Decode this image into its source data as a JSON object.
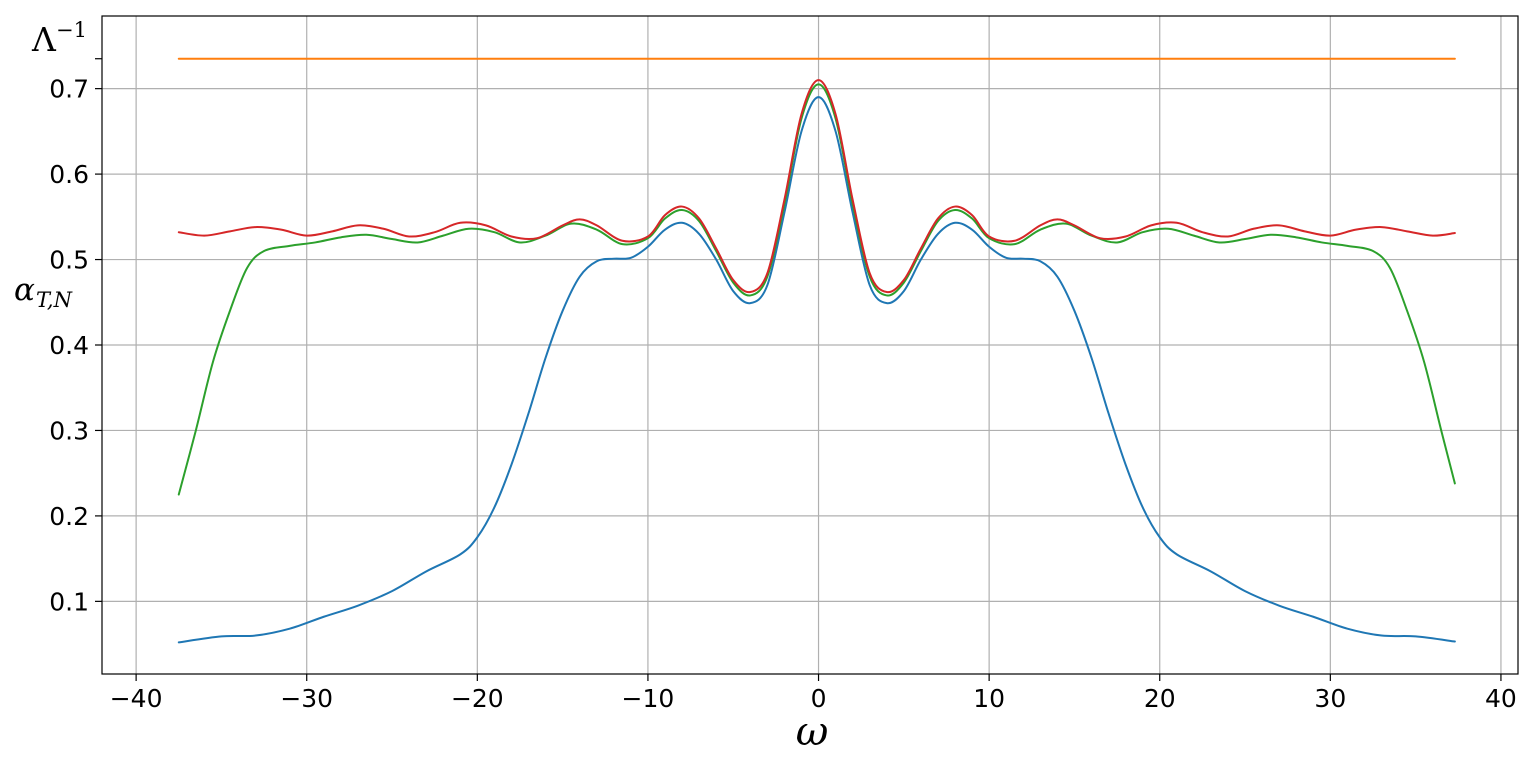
{
  "chart_data": {
    "type": "line",
    "title": "",
    "xlabel": "ω",
    "ylabel": "α_{T,N}",
    "xlim": [
      -42,
      41
    ],
    "ylim": [
      0.015,
      0.785
    ],
    "grid": true,
    "legend": "none",
    "x_ticks": [
      -40,
      -30,
      -20,
      -10,
      0,
      10,
      20,
      30,
      40
    ],
    "x_tick_labels": [
      "−40",
      "−30",
      "−20",
      "−10",
      "0",
      "10",
      "20",
      "30",
      "40"
    ],
    "y_ticks": [
      0.1,
      0.2,
      0.3,
      0.4,
      0.5,
      0.6,
      0.7
    ],
    "y_tick_labels": [
      "0.1",
      "0.2",
      "0.3",
      "0.4",
      "0.5",
      "0.6",
      "0.7"
    ],
    "annotations": [
      {
        "text": "Λ⁻¹",
        "y": 0.735
      }
    ],
    "series": [
      {
        "color": "#1f77b4",
        "points": [
          [
            -37.5,
            0.052
          ],
          [
            -35,
            0.059
          ],
          [
            -33,
            0.06
          ],
          [
            -31,
            0.068
          ],
          [
            -29,
            0.082
          ],
          [
            -27,
            0.095
          ],
          [
            -25,
            0.112
          ],
          [
            -23,
            0.135
          ],
          [
            -21,
            0.155
          ],
          [
            -20,
            0.175
          ],
          [
            -19,
            0.21
          ],
          [
            -18,
            0.26
          ],
          [
            -17,
            0.32
          ],
          [
            -16,
            0.385
          ],
          [
            -15,
            0.44
          ],
          [
            -14,
            0.48
          ],
          [
            -13,
            0.498
          ],
          [
            -12,
            0.501
          ],
          [
            -11,
            0.502
          ],
          [
            -10,
            0.515
          ],
          [
            -9,
            0.535
          ],
          [
            -8,
            0.543
          ],
          [
            -7,
            0.53
          ],
          [
            -6,
            0.5
          ],
          [
            -5,
            0.463
          ],
          [
            -4,
            0.449
          ],
          [
            -3,
            0.47
          ],
          [
            -2,
            0.555
          ],
          [
            -1,
            0.65
          ],
          [
            0,
            0.69
          ],
          [
            1,
            0.65
          ],
          [
            2,
            0.555
          ],
          [
            3,
            0.47
          ],
          [
            4,
            0.449
          ],
          [
            5,
            0.463
          ],
          [
            6,
            0.5
          ],
          [
            7,
            0.53
          ],
          [
            8,
            0.543
          ],
          [
            9,
            0.535
          ],
          [
            10,
            0.515
          ],
          [
            11,
            0.502
          ],
          [
            12,
            0.501
          ],
          [
            13,
            0.498
          ],
          [
            14,
            0.48
          ],
          [
            15,
            0.44
          ],
          [
            16,
            0.385
          ],
          [
            17,
            0.32
          ],
          [
            18,
            0.26
          ],
          [
            19,
            0.21
          ],
          [
            20,
            0.175
          ],
          [
            21,
            0.155
          ],
          [
            23,
            0.135
          ],
          [
            25,
            0.112
          ],
          [
            27,
            0.095
          ],
          [
            29,
            0.082
          ],
          [
            31,
            0.068
          ],
          [
            33,
            0.06
          ],
          [
            35,
            0.059
          ],
          [
            37.3,
            0.053
          ]
        ]
      },
      {
        "color": "#ff7f0e",
        "points": [
          [
            -37.5,
            0.735
          ],
          [
            37.3,
            0.735
          ]
        ]
      },
      {
        "color": "#2ca02c",
        "points": [
          [
            -37.5,
            0.225
          ],
          [
            -36.5,
            0.3
          ],
          [
            -35.5,
            0.38
          ],
          [
            -34.5,
            0.44
          ],
          [
            -33.5,
            0.49
          ],
          [
            -32.5,
            0.51
          ],
          [
            -31,
            0.516
          ],
          [
            -29.5,
            0.52
          ],
          [
            -28,
            0.526
          ],
          [
            -26.5,
            0.529
          ],
          [
            -25,
            0.524
          ],
          [
            -23.5,
            0.52
          ],
          [
            -22,
            0.528
          ],
          [
            -20.5,
            0.536
          ],
          [
            -19,
            0.532
          ],
          [
            -17.5,
            0.52
          ],
          [
            -16,
            0.528
          ],
          [
            -14.5,
            0.542
          ],
          [
            -13,
            0.535
          ],
          [
            -11.5,
            0.518
          ],
          [
            -10,
            0.525
          ],
          [
            -9,
            0.548
          ],
          [
            -8,
            0.558
          ],
          [
            -7,
            0.545
          ],
          [
            -6,
            0.51
          ],
          [
            -5,
            0.473
          ],
          [
            -4,
            0.458
          ],
          [
            -3,
            0.48
          ],
          [
            -2,
            0.565
          ],
          [
            -1,
            0.665
          ],
          [
            0,
            0.705
          ],
          [
            1,
            0.665
          ],
          [
            2,
            0.565
          ],
          [
            3,
            0.48
          ],
          [
            4,
            0.458
          ],
          [
            5,
            0.473
          ],
          [
            6,
            0.51
          ],
          [
            7,
            0.545
          ],
          [
            8,
            0.558
          ],
          [
            9,
            0.548
          ],
          [
            10,
            0.525
          ],
          [
            11.5,
            0.518
          ],
          [
            13,
            0.535
          ],
          [
            14.5,
            0.542
          ],
          [
            16,
            0.528
          ],
          [
            17.5,
            0.52
          ],
          [
            19,
            0.532
          ],
          [
            20.5,
            0.536
          ],
          [
            22,
            0.528
          ],
          [
            23.5,
            0.52
          ],
          [
            25,
            0.524
          ],
          [
            26.5,
            0.529
          ],
          [
            28,
            0.526
          ],
          [
            29.5,
            0.52
          ],
          [
            31,
            0.516
          ],
          [
            32.5,
            0.51
          ],
          [
            33.5,
            0.49
          ],
          [
            34.5,
            0.44
          ],
          [
            35.5,
            0.38
          ],
          [
            36.5,
            0.3
          ],
          [
            37.3,
            0.238
          ]
        ]
      },
      {
        "color": "#d62728",
        "points": [
          [
            -37.5,
            0.532
          ],
          [
            -36,
            0.528
          ],
          [
            -34.5,
            0.533
          ],
          [
            -33,
            0.538
          ],
          [
            -31.5,
            0.535
          ],
          [
            -30,
            0.528
          ],
          [
            -28.5,
            0.533
          ],
          [
            -27,
            0.54
          ],
          [
            -25.5,
            0.536
          ],
          [
            -24,
            0.527
          ],
          [
            -22.5,
            0.532
          ],
          [
            -21,
            0.543
          ],
          [
            -19.5,
            0.54
          ],
          [
            -18,
            0.527
          ],
          [
            -16.5,
            0.525
          ],
          [
            -15,
            0.54
          ],
          [
            -14,
            0.547
          ],
          [
            -13,
            0.54
          ],
          [
            -11.5,
            0.522
          ],
          [
            -10,
            0.527
          ],
          [
            -9,
            0.552
          ],
          [
            -8,
            0.562
          ],
          [
            -7,
            0.548
          ],
          [
            -6,
            0.513
          ],
          [
            -5,
            0.476
          ],
          [
            -4,
            0.462
          ],
          [
            -3,
            0.484
          ],
          [
            -2,
            0.57
          ],
          [
            -1,
            0.67
          ],
          [
            0,
            0.71
          ],
          [
            1,
            0.67
          ],
          [
            2,
            0.57
          ],
          [
            3,
            0.484
          ],
          [
            4,
            0.462
          ],
          [
            5,
            0.476
          ],
          [
            6,
            0.513
          ],
          [
            7,
            0.548
          ],
          [
            8,
            0.562
          ],
          [
            9,
            0.552
          ],
          [
            10,
            0.527
          ],
          [
            11.5,
            0.522
          ],
          [
            13,
            0.54
          ],
          [
            14,
            0.547
          ],
          [
            15,
            0.54
          ],
          [
            16.5,
            0.525
          ],
          [
            18,
            0.527
          ],
          [
            19.5,
            0.54
          ],
          [
            21,
            0.543
          ],
          [
            22.5,
            0.532
          ],
          [
            24,
            0.527
          ],
          [
            25.5,
            0.536
          ],
          [
            27,
            0.54
          ],
          [
            28.5,
            0.533
          ],
          [
            30,
            0.528
          ],
          [
            31.5,
            0.535
          ],
          [
            33,
            0.538
          ],
          [
            34.5,
            0.533
          ],
          [
            36,
            0.528
          ],
          [
            37.3,
            0.531
          ]
        ]
      }
    ]
  }
}
